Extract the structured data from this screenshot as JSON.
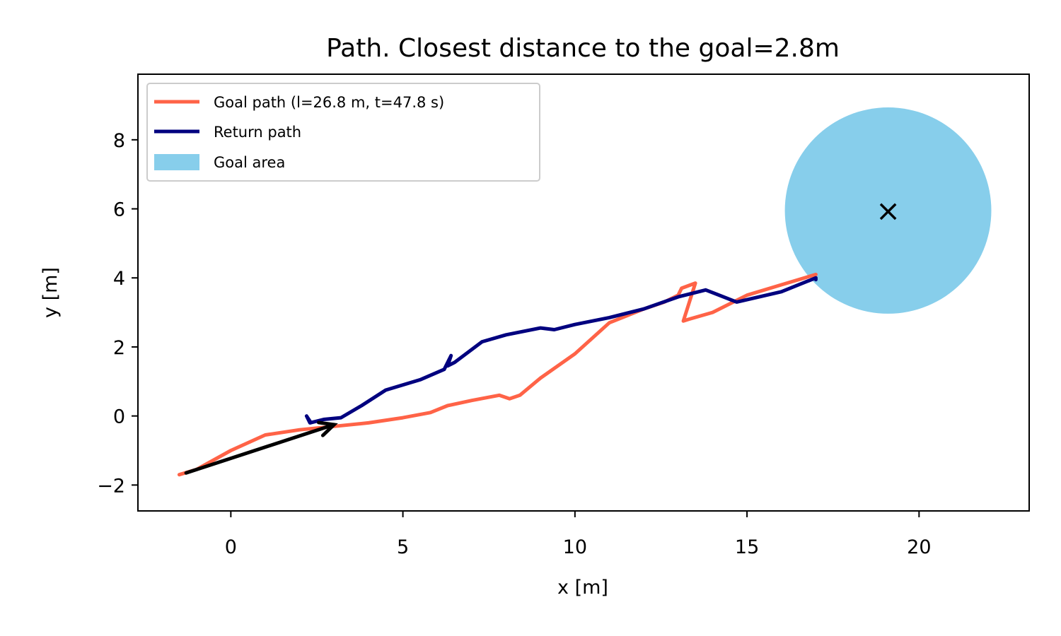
{
  "chart_data": {
    "type": "line",
    "title": "Path. Closest distance to the goal=2.8m",
    "xlabel": "x [m]",
    "ylabel": "y [m]",
    "xlim": [
      -2.7,
      23.2
    ],
    "ylim": [
      -2.75,
      9.9
    ],
    "xticks": [
      0,
      5,
      10,
      15,
      20
    ],
    "yticks": [
      -2,
      0,
      2,
      4,
      6,
      8
    ],
    "xtick_labels": [
      "0",
      "5",
      "10",
      "15",
      "20"
    ],
    "ytick_labels": [
      "−2",
      "0",
      "2",
      "4",
      "6",
      "8"
    ],
    "grid": false,
    "legend_position": "top-left",
    "series": [
      {
        "name": "Goal path (l=26.8 m, t=47.8 s)",
        "color": "#ff6347",
        "x": [
          -1.5,
          -1.0,
          0.0,
          1.0,
          2.0,
          3.0,
          4.0,
          5.0,
          5.8,
          6.3,
          7.0,
          7.8,
          8.1,
          8.4,
          9.0,
          10.0,
          11.0,
          12.0,
          12.6,
          13.0,
          13.1,
          13.5,
          13.15,
          13.3,
          14.0,
          15.0,
          16.0,
          17.0
        ],
        "y": [
          -1.7,
          -1.55,
          -1.0,
          -0.55,
          -0.4,
          -0.3,
          -0.2,
          -0.05,
          0.1,
          0.3,
          0.45,
          0.6,
          0.5,
          0.6,
          1.1,
          1.8,
          2.7,
          3.1,
          3.3,
          3.5,
          3.7,
          3.85,
          2.75,
          2.8,
          3.0,
          3.5,
          3.8,
          4.1
        ]
      },
      {
        "name": "Return path",
        "color": "#00007f",
        "x": [
          17.0,
          17.0,
          16.0,
          14.7,
          13.8,
          13.0,
          12.0,
          11.0,
          10.0,
          9.4,
          9.0,
          8.0,
          7.3,
          6.5,
          6.3,
          6.4,
          6.2,
          5.5,
          4.5,
          3.8,
          3.2,
          2.7,
          2.3,
          2.2,
          2.3
        ],
        "y": [
          3.95,
          4.0,
          3.6,
          3.3,
          3.65,
          3.45,
          3.1,
          2.85,
          2.65,
          2.5,
          2.55,
          2.35,
          2.15,
          1.55,
          1.45,
          1.75,
          1.35,
          1.05,
          0.75,
          0.3,
          -0.05,
          -0.1,
          -0.2,
          0.0,
          -0.15
        ]
      }
    ],
    "goal_area": {
      "name": "Goal area",
      "color": "#87ceeb",
      "center": [
        19.1,
        5.95
      ],
      "radius": 3.0
    },
    "goal_marker": {
      "symbol": "×",
      "x": 19.1,
      "y": 5.95
    },
    "start_arrow": {
      "color": "#000000",
      "from": [
        -1.3,
        -1.65
      ],
      "to": [
        3.0,
        -0.25
      ]
    }
  }
}
